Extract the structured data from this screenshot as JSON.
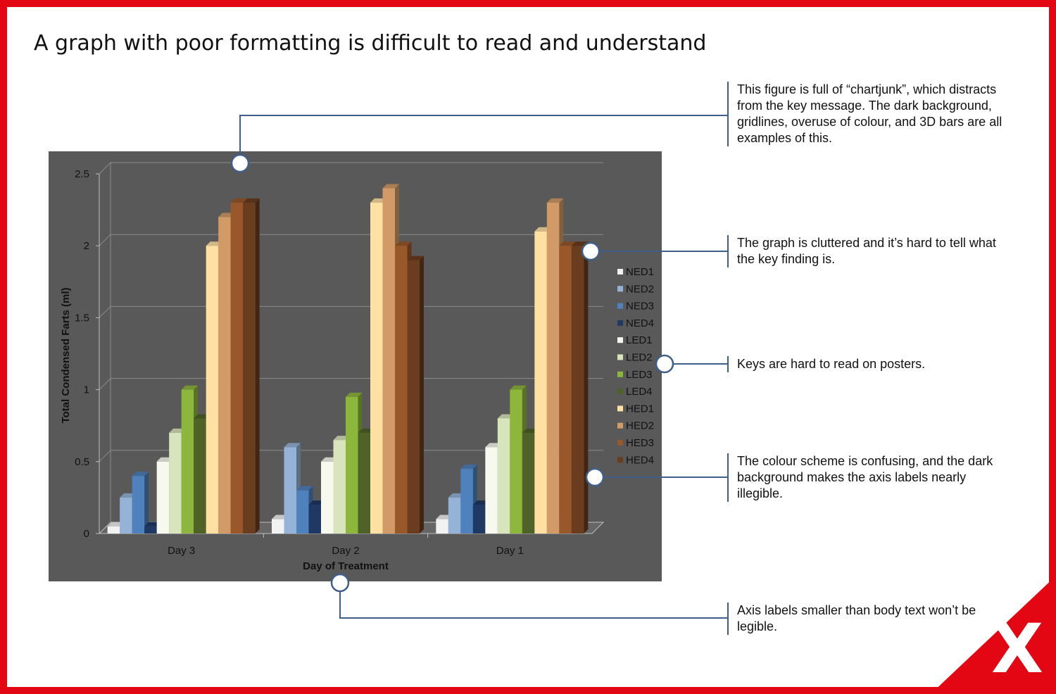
{
  "slide": {
    "title": "A graph with poor formatting is difficult to read and understand",
    "mark": "X",
    "accent_color": "#e30613",
    "annotation_color": "#3f5f8a"
  },
  "annotations": [
    {
      "text": "This figure is full of “chartjunk”, which distracts from the key message. The dark background, gridlines, overuse of colour, and 3D bars are all examples of this."
    },
    {
      "text": "The graph is cluttered and it’s hard to tell what the key finding is."
    },
    {
      "text": "Keys are hard to read on posters."
    },
    {
      "text": "The colour scheme is confusing, and the dark background makes the axis labels nearly illegible."
    },
    {
      "text": "Axis labels smaller than body text won’t be legible."
    }
  ],
  "chart_data": {
    "type": "bar",
    "style": "3d-clustered",
    "xlabel": "Day of Treatment",
    "ylabel": "Total Condensed Farts (ml)",
    "categories": [
      "Day 3",
      "Day 2",
      "Day 1"
    ],
    "ylim": [
      0,
      2.5
    ],
    "yticks": [
      "0",
      "0.5",
      "1",
      "1.5",
      "2",
      "2.5"
    ],
    "grid": true,
    "background": "#595959",
    "legend_position": "right",
    "series": [
      {
        "name": "NED1",
        "color": "#f2f2f2",
        "values": [
          0.05,
          0.1,
          0.1
        ]
      },
      {
        "name": "NED2",
        "color": "#95b3d7",
        "values": [
          0.25,
          0.6,
          0.25
        ]
      },
      {
        "name": "NED3",
        "color": "#4f81bd",
        "values": [
          0.4,
          0.3,
          0.45
        ]
      },
      {
        "name": "NED4",
        "color": "#1f3864",
        "values": [
          0.05,
          0.2,
          0.2
        ]
      },
      {
        "name": "LED1",
        "color": "#f7f9ef",
        "values": [
          0.5,
          0.5,
          0.6
        ]
      },
      {
        "name": "LED2",
        "color": "#d8e4bc",
        "values": [
          0.7,
          0.65,
          0.8
        ]
      },
      {
        "name": "LED3",
        "color": "#8db63c",
        "values": [
          1.0,
          0.95,
          1.0
        ]
      },
      {
        "name": "LED4",
        "color": "#4f6228",
        "values": [
          0.8,
          0.7,
          0.7
        ]
      },
      {
        "name": "HED1",
        "color": "#ffe0a3",
        "values": [
          2.0,
          2.3,
          2.1
        ]
      },
      {
        "name": "HED2",
        "color": "#d29a66",
        "values": [
          2.2,
          2.4,
          2.3
        ]
      },
      {
        "name": "HED3",
        "color": "#99582a",
        "values": [
          2.3,
          2.0,
          2.0
        ]
      },
      {
        "name": "HED4",
        "color": "#6a3d1e",
        "values": [
          2.3,
          1.9,
          2.0
        ]
      }
    ]
  }
}
